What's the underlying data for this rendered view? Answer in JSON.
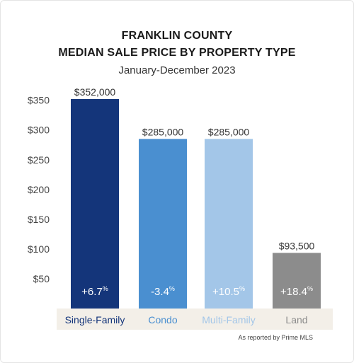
{
  "header": {
    "title_line1": "FRANKLIN COUNTY",
    "title_line2": "MEDIAN SALE PRICE BY PROPERTY TYPE",
    "subtitle": "January-December 2023"
  },
  "source": "As reported by Prime MLS",
  "chart_data": {
    "type": "bar",
    "title": "FRANKLIN COUNTY MEDIAN SALE PRICE BY PROPERTY TYPE",
    "subtitle": "January-December 2023",
    "categories": [
      "Single-Family",
      "Condo",
      "Multi-Family",
      "Land"
    ],
    "values": [
      352000,
      285000,
      285000,
      93500
    ],
    "value_labels": [
      "$352,000",
      "$285,000",
      "$285,000",
      "$93,500"
    ],
    "change_labels": [
      "+6.7",
      "-3.4",
      "+10.5",
      "+18.4"
    ],
    "change_unit": "%",
    "bar_colors": [
      "#14357a",
      "#4a8fd0",
      "#a3c6e8",
      "#8c8c8c"
    ],
    "category_label_colors": [
      "#14357a",
      "#4a8fd0",
      "#a3c6e8",
      "#8c8c8c"
    ],
    "y_ticks": [
      50,
      100,
      150,
      200,
      250,
      300,
      350
    ],
    "y_tick_labels": [
      "$50",
      "$100",
      "$150",
      "$200",
      "$250",
      "$300",
      "$350"
    ],
    "y_unit_multiplier": 1000,
    "ylim": [
      0,
      352000
    ],
    "grid": false,
    "category_band_color": "#f3efe8"
  }
}
